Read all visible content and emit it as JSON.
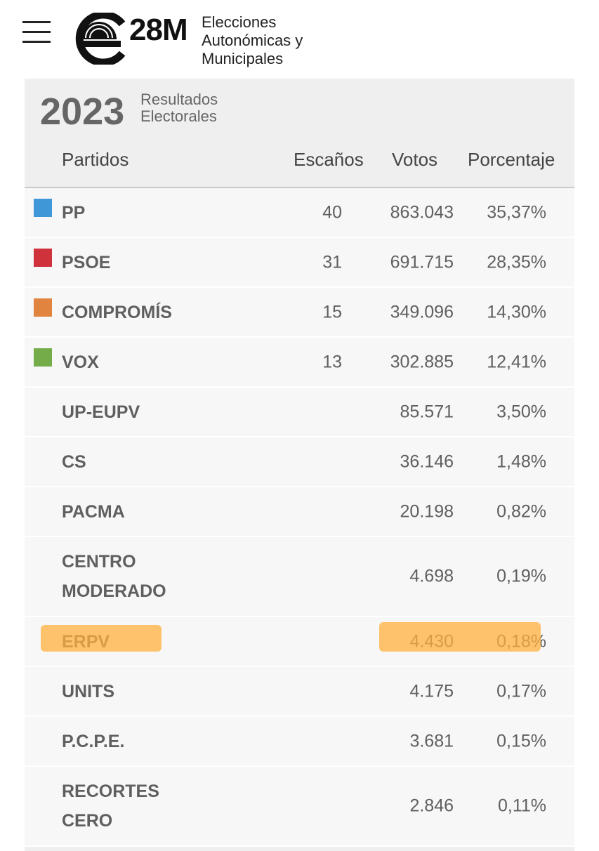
{
  "header": {
    "logo": "28M",
    "subtitle_lines": [
      "Elecciones",
      "Autonómicas y",
      "Municipales"
    ]
  },
  "card": {
    "year": "2023",
    "title_lines": [
      "Resultados",
      "Electorales"
    ]
  },
  "table": {
    "columns": [
      "Partidos",
      "Escaños",
      "Votos",
      "Porcentaje"
    ],
    "rows": [
      {
        "party": "PP",
        "color": "#3f97d8",
        "seats": "40",
        "votes": "863.043",
        "percent": "35,37%"
      },
      {
        "party": "PSOE",
        "color": "#d0323c",
        "seats": "31",
        "votes": "691.715",
        "percent": "28,35%"
      },
      {
        "party": "COMPROMÍS",
        "color": "#e0843f",
        "seats": "15",
        "votes": "349.096",
        "percent": "14,30%"
      },
      {
        "party": "VOX",
        "color": "#73ac48",
        "seats": "13",
        "votes": "302.885",
        "percent": "12,41%"
      },
      {
        "party": "UP-EUPV",
        "votes": "85.571",
        "percent": "3,50%"
      },
      {
        "party": "CS",
        "votes": "36.146",
        "percent": "1,48%"
      },
      {
        "party": "PACMA",
        "votes": "20.198",
        "percent": "0,82%"
      },
      {
        "party": "CENTRO MODERADO",
        "votes": "4.698",
        "percent": "0,19%"
      },
      {
        "party": "ERPV",
        "votes": "4.430",
        "percent": "0,18%"
      },
      {
        "party": "UNITS",
        "votes": "4.175",
        "percent": "0,17%"
      },
      {
        "party": "P.C.P.E.",
        "votes": "3.681",
        "percent": "0,15%"
      },
      {
        "party": "RECORTES CERO",
        "votes": "2.846",
        "percent": "0,11%"
      }
    ]
  }
}
